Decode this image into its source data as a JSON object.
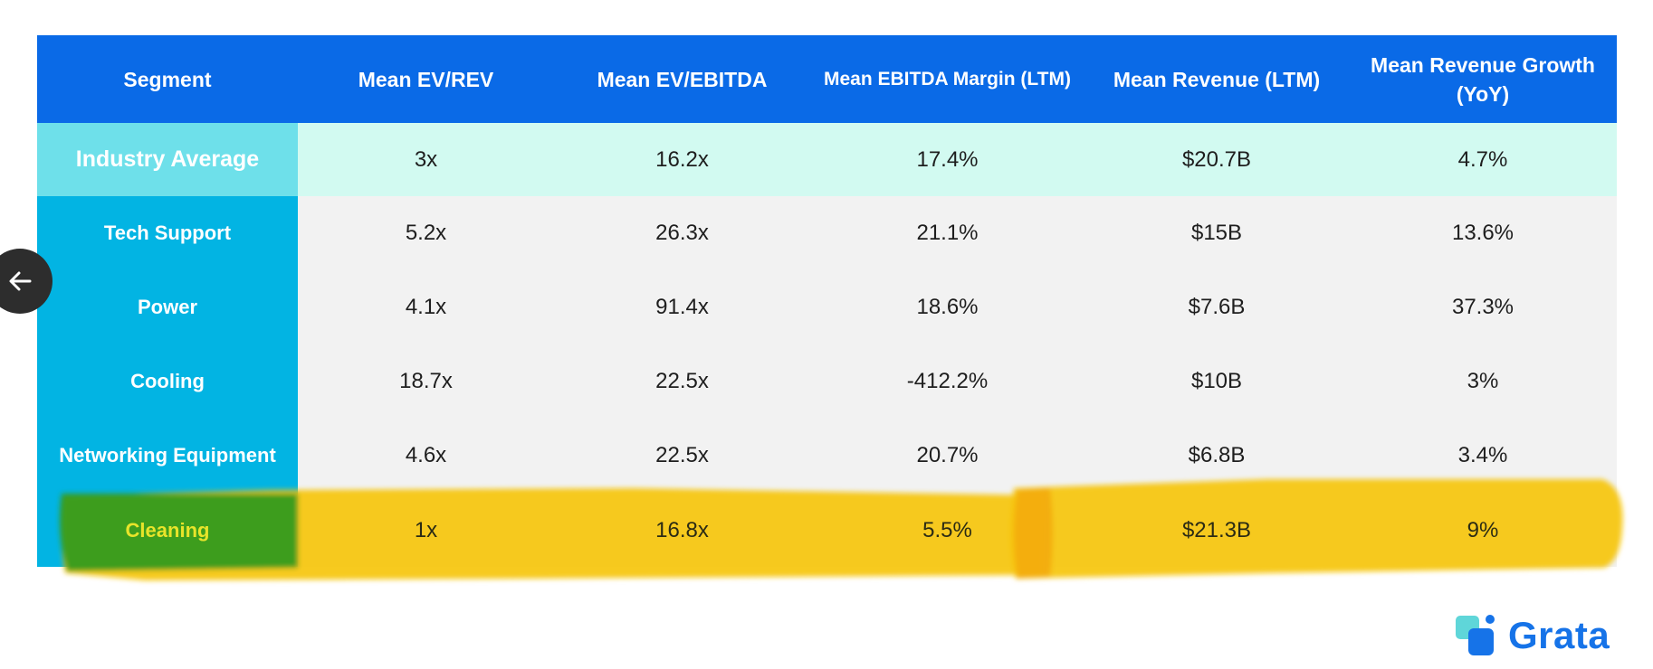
{
  "chart_data": {
    "type": "table",
    "columns": [
      "Segment",
      "Mean EV/REV",
      "Mean EV/EBITDA",
      "Mean EBITDA Margin (LTM)",
      "Mean Revenue (LTM)",
      "Mean Revenue Growth (YoY)"
    ],
    "rows": [
      {
        "segment": "Industry Average",
        "values": [
          "3x",
          "16.2x",
          "17.4%",
          "$20.7B",
          "4.7%"
        ]
      },
      {
        "segment": "Tech Support",
        "values": [
          "5.2x",
          "26.3x",
          "21.1%",
          "$15B",
          "13.6%"
        ]
      },
      {
        "segment": "Power",
        "values": [
          "4.1x",
          "91.4x",
          "18.6%",
          "$7.6B",
          "37.3%"
        ]
      },
      {
        "segment": "Cooling",
        "values": [
          "18.7x",
          "22.5x",
          "-412.2%",
          "$10B",
          "3%"
        ]
      },
      {
        "segment": "Networking Equipment",
        "values": [
          "4.6x",
          "22.5x",
          "20.7%",
          "$6.8B",
          "3.4%"
        ]
      },
      {
        "segment": "Cleaning",
        "values": [
          "1x",
          "16.8x",
          "5.5%",
          "$21.3B",
          "9%"
        ]
      }
    ],
    "highlighted_row": "Cleaning"
  },
  "header": {
    "segment": "Segment",
    "ev_rev": "Mean EV/REV",
    "ev_ebitda": "Mean EV/EBITDA",
    "ebitda_margin": "Mean EBITDA Margin (LTM)",
    "revenue": "Mean Revenue (LTM)",
    "growth_line1": "Mean Revenue Growth",
    "growth_line2": "(YoY)"
  },
  "logo": {
    "text": "Grata"
  },
  "colors": {
    "header_bg": "#0a6ae7",
    "segment_bg": "#02b4e3",
    "average_segment_bg": "#6ee0ea",
    "average_row_bg": "#d2faf1",
    "body_bg": "#f2f2f2",
    "highlight": "#f6c611",
    "logo": "#1673e8"
  },
  "icons": {
    "back": "arrow-left-icon",
    "logo": "grata-logo-icon"
  }
}
